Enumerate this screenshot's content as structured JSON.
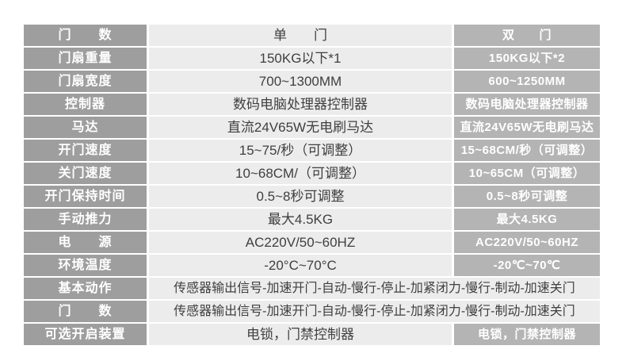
{
  "colors": {
    "label_bg": "#9e9e9e",
    "label_text": "#ffffff",
    "single_bg": "#ececec",
    "single_text": "#3f3f3f",
    "double_bg": "#b4b4b4",
    "double_text": "#ffffff"
  },
  "table": {
    "rows": [
      {
        "label": "门　　数",
        "single": "单　　门",
        "double": "双　　门"
      },
      {
        "label": "门扇重量",
        "single": "150KG以下*1",
        "double": "150KG以下*2"
      },
      {
        "label": "门扇宽度",
        "single": "700~1300MM",
        "double": "600~1250MM"
      },
      {
        "label": "控制器",
        "single": "数码电脑处理器控制器",
        "double": "数码电脑处理器控制器"
      },
      {
        "label": "马达",
        "single": "直流24V65W无电刷马达",
        "double": "直流24V65W无电刷马达"
      },
      {
        "label": "开门速度",
        "single": "15~75/秒（可调整）",
        "double": "15~68CM/秒（可调整）"
      },
      {
        "label": "关门速度",
        "single": "10~68CM/（可调整）",
        "double": "10~65CM（可调整）"
      },
      {
        "label": "开门保持时间",
        "single": "0.5~8秒可调整",
        "double": "0.5~8秒可调整"
      },
      {
        "label": "手动推力",
        "single": "最大4.5KG",
        "double": "最大4.5KG"
      },
      {
        "label": "电　　源",
        "single": "AC220V/50~60HZ",
        "double": "AC220V/50~60HZ"
      },
      {
        "label": "环境温度",
        "single": "-20°C~70°C",
        "double": "-20℃~70℃"
      },
      {
        "label": "基本动作",
        "span": "传感器输出信号-加速开门-自动-慢行-停止-加紧闭力-慢行-制动-加速关门"
      },
      {
        "label": "门　　数",
        "span": "传感器输出信号-加速开门-自动-慢行-停止-加紧闭力-慢行-制动-加速关门"
      },
      {
        "label": "可选开启装置",
        "single": "电锁，门禁控制器",
        "double": "电锁，门禁控制器"
      }
    ]
  }
}
